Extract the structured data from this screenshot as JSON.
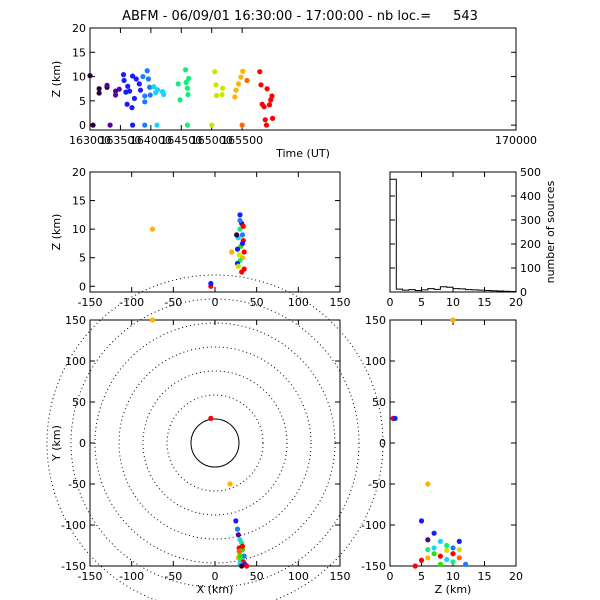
{
  "title": {
    "text": "ABFM - 06/09/01 16:30:00 - 17:00:00 - nb loc.=",
    "count": "543"
  },
  "palette": [
    "#2b003f",
    "#5a009a",
    "#1a1aff",
    "#1b7bff",
    "#19d2ff",
    "#12ef76",
    "#2ee000",
    "#c9e600",
    "#ffb300",
    "#ff6600",
    "#ff0000"
  ],
  "chart_data": [
    {
      "id": "time-height",
      "type": "scatter",
      "xlabel": "Time (UT)",
      "ylabel": "Z (km)",
      "xlim": [
        163000,
        170000
      ],
      "ylim": [
        -1,
        20
      ],
      "xticks": [
        "163000",
        "163500",
        "164000",
        "164500",
        "165000",
        "165500",
        "170000"
      ],
      "yticks": [
        "0",
        "5",
        "10",
        "15",
        "20"
      ],
      "points": [
        [
          163000,
          10.2,
          0
        ],
        [
          163050,
          0,
          0
        ],
        [
          163150,
          7.5,
          0
        ],
        [
          163150,
          6.6,
          0
        ],
        [
          163280,
          7.8,
          0
        ],
        [
          163280,
          8.2,
          1
        ],
        [
          163420,
          7.0,
          1
        ],
        [
          163420,
          6.2,
          1
        ],
        [
          163480,
          7.4,
          1
        ],
        [
          163330,
          0,
          1
        ],
        [
          163550,
          10.4,
          2
        ],
        [
          163560,
          9.2,
          2
        ],
        [
          163590,
          6.8,
          2
        ],
        [
          163620,
          8.0,
          2
        ],
        [
          163650,
          7.0,
          2
        ],
        [
          163700,
          10.1,
          2
        ],
        [
          163730,
          5.5,
          2
        ],
        [
          163610,
          4.3,
          2
        ],
        [
          163690,
          3.6,
          2
        ],
        [
          163760,
          9.5,
          2
        ],
        [
          163810,
          8.5,
          2
        ],
        [
          163830,
          7.2,
          2
        ],
        [
          163870,
          10.0,
          3
        ],
        [
          163900,
          6.0,
          3
        ],
        [
          163900,
          4.8,
          3
        ],
        [
          163940,
          11.2,
          3
        ],
        [
          163960,
          9.5,
          3
        ],
        [
          163980,
          7.8,
          3
        ],
        [
          163990,
          6.2,
          3
        ],
        [
          163700,
          0,
          2
        ],
        [
          163900,
          0,
          3
        ],
        [
          164050,
          7.9,
          4
        ],
        [
          164080,
          6.7,
          4
        ],
        [
          164110,
          7.3,
          4
        ],
        [
          164190,
          6.9,
          4
        ],
        [
          164210,
          6.3,
          4
        ],
        [
          164100,
          0,
          4
        ],
        [
          164450,
          8.5,
          5
        ],
        [
          164480,
          5.2,
          5
        ],
        [
          164570,
          11.4,
          5
        ],
        [
          164580,
          8.8,
          5
        ],
        [
          164600,
          7.6,
          5
        ],
        [
          164610,
          6.3,
          5
        ],
        [
          164620,
          9.6,
          5
        ],
        [
          164600,
          0,
          5
        ],
        [
          165050,
          11.0,
          7
        ],
        [
          165070,
          8.3,
          7
        ],
        [
          165080,
          6.1,
          7
        ],
        [
          165170,
          6.3,
          7
        ],
        [
          165180,
          7.6,
          7
        ],
        [
          165000,
          0,
          7
        ],
        [
          165380,
          5.8,
          8
        ],
        [
          165400,
          7.2,
          8
        ],
        [
          165440,
          8.5,
          8
        ],
        [
          165480,
          9.9,
          8
        ],
        [
          165510,
          11.1,
          8
        ],
        [
          165580,
          9.2,
          9
        ],
        [
          165500,
          0,
          9
        ],
        [
          165790,
          11.0,
          10
        ],
        [
          165810,
          8.3,
          10
        ],
        [
          165830,
          4.3,
          10
        ],
        [
          165860,
          3.8,
          10
        ],
        [
          165880,
          1.1,
          10
        ],
        [
          165910,
          7.5,
          10
        ],
        [
          165950,
          4.2,
          10
        ],
        [
          165970,
          5.2,
          10
        ],
        [
          165990,
          6.0,
          10
        ],
        [
          166000,
          1.4,
          10
        ],
        [
          165900,
          0,
          10
        ]
      ]
    },
    {
      "id": "x-z",
      "type": "scatter",
      "ylabel": "Z (km)",
      "xlim": [
        -150,
        150
      ],
      "ylim": [
        -1,
        20
      ],
      "xticks": [
        "-150",
        "-100",
        "-50",
        "0",
        "50",
        "100",
        "150"
      ],
      "yticks": [
        "0",
        "5",
        "10",
        "15",
        "20"
      ],
      "points": [
        [
          -75,
          10,
          8
        ],
        [
          -5,
          0,
          10
        ],
        [
          -5,
          0.5,
          2
        ],
        [
          30,
          12.5,
          2
        ],
        [
          32,
          11,
          1
        ],
        [
          30,
          10,
          5
        ],
        [
          33,
          9,
          3
        ],
        [
          28,
          8.5,
          4
        ],
        [
          34,
          8,
          10
        ],
        [
          31,
          7,
          6
        ],
        [
          27,
          6.5,
          2
        ],
        [
          35,
          6,
          10
        ],
        [
          29,
          5.5,
          7
        ],
        [
          33,
          5,
          8
        ],
        [
          30,
          4.5,
          5
        ],
        [
          27,
          4,
          2
        ],
        [
          35,
          3,
          10
        ],
        [
          32,
          2.5,
          10
        ],
        [
          28,
          3.5,
          7
        ],
        [
          33,
          7.5,
          2
        ],
        [
          26,
          9,
          0
        ],
        [
          34,
          10.5,
          10
        ],
        [
          30,
          11.5,
          3
        ],
        [
          20,
          6,
          8
        ]
      ]
    },
    {
      "id": "z-histogram",
      "type": "bar",
      "ylabel": "number of sources",
      "xlim": [
        0,
        20
      ],
      "ylim": [
        0,
        500
      ],
      "xticks": [
        "0",
        "5",
        "10",
        "15",
        "20"
      ],
      "yticks": [
        "0",
        "100",
        "200",
        "300",
        "400",
        "500"
      ],
      "values": [
        470,
        12,
        8,
        10,
        6,
        9,
        14,
        11,
        22,
        20,
        14,
        13,
        10,
        9,
        8,
        6,
        5,
        4,
        3,
        2
      ]
    },
    {
      "id": "x-y",
      "type": "scatter",
      "xlabel": "X (km)",
      "ylabel": "Y (km)",
      "xlim": [
        -150,
        150
      ],
      "ylim": [
        -150,
        150
      ],
      "xticks": [
        "-150",
        "-100",
        "-50",
        "0",
        "50",
        "100",
        "150"
      ],
      "yticks": [
        "-150",
        "-100",
        "-50",
        "0",
        "50",
        "100",
        "150"
      ],
      "points": [
        [
          -75,
          150,
          8
        ],
        [
          -5,
          30,
          10
        ],
        [
          18,
          -50,
          8
        ],
        [
          25,
          -95,
          2
        ],
        [
          27,
          -105,
          3
        ],
        [
          28,
          -112,
          1
        ],
        [
          30,
          -118,
          4
        ],
        [
          32,
          -122,
          5
        ],
        [
          29,
          -128,
          10
        ],
        [
          33,
          -130,
          6
        ],
        [
          30,
          -135,
          7
        ],
        [
          35,
          -138,
          3
        ],
        [
          28,
          -140,
          8
        ],
        [
          31,
          -142,
          5
        ],
        [
          34,
          -145,
          10
        ],
        [
          30,
          -147,
          4
        ],
        [
          36,
          -148,
          2
        ],
        [
          32,
          -150,
          0
        ],
        [
          38,
          -150,
          10
        ],
        [
          29,
          -132,
          9
        ],
        [
          33,
          -126,
          10
        ],
        [
          30,
          -138,
          6
        ]
      ]
    },
    {
      "id": "z-y",
      "type": "scatter",
      "xlabel": "Z (km)",
      "xlim": [
        0,
        20
      ],
      "ylim": [
        -150,
        150
      ],
      "xticks": [
        "0",
        "5",
        "10",
        "15",
        "20"
      ],
      "yticks": [
        "-150",
        "-100",
        "-50",
        "0",
        "50",
        "100",
        "150"
      ],
      "points": [
        [
          10,
          150,
          8
        ],
        [
          0.5,
          30,
          10
        ],
        [
          0.8,
          30,
          2
        ],
        [
          6,
          -50,
          8
        ],
        [
          4,
          -150,
          10
        ],
        [
          5,
          -95,
          2
        ],
        [
          6,
          -118,
          1
        ],
        [
          7,
          -110,
          2
        ],
        [
          8,
          -120,
          4
        ],
        [
          9,
          -125,
          5
        ],
        [
          10,
          -128,
          3
        ],
        [
          11,
          -130,
          7
        ],
        [
          7,
          -135,
          6
        ],
        [
          8,
          -138,
          10
        ],
        [
          6,
          -140,
          8
        ],
        [
          9,
          -142,
          4
        ],
        [
          10,
          -145,
          5
        ],
        [
          11,
          -140,
          9
        ],
        [
          12,
          -148,
          3
        ],
        [
          5,
          -143,
          10
        ],
        [
          8,
          -148,
          6
        ],
        [
          9,
          -131,
          7
        ],
        [
          7,
          -128,
          4
        ],
        [
          10,
          -135,
          10
        ],
        [
          11,
          -120,
          2
        ],
        [
          6,
          -130,
          5
        ]
      ]
    }
  ]
}
